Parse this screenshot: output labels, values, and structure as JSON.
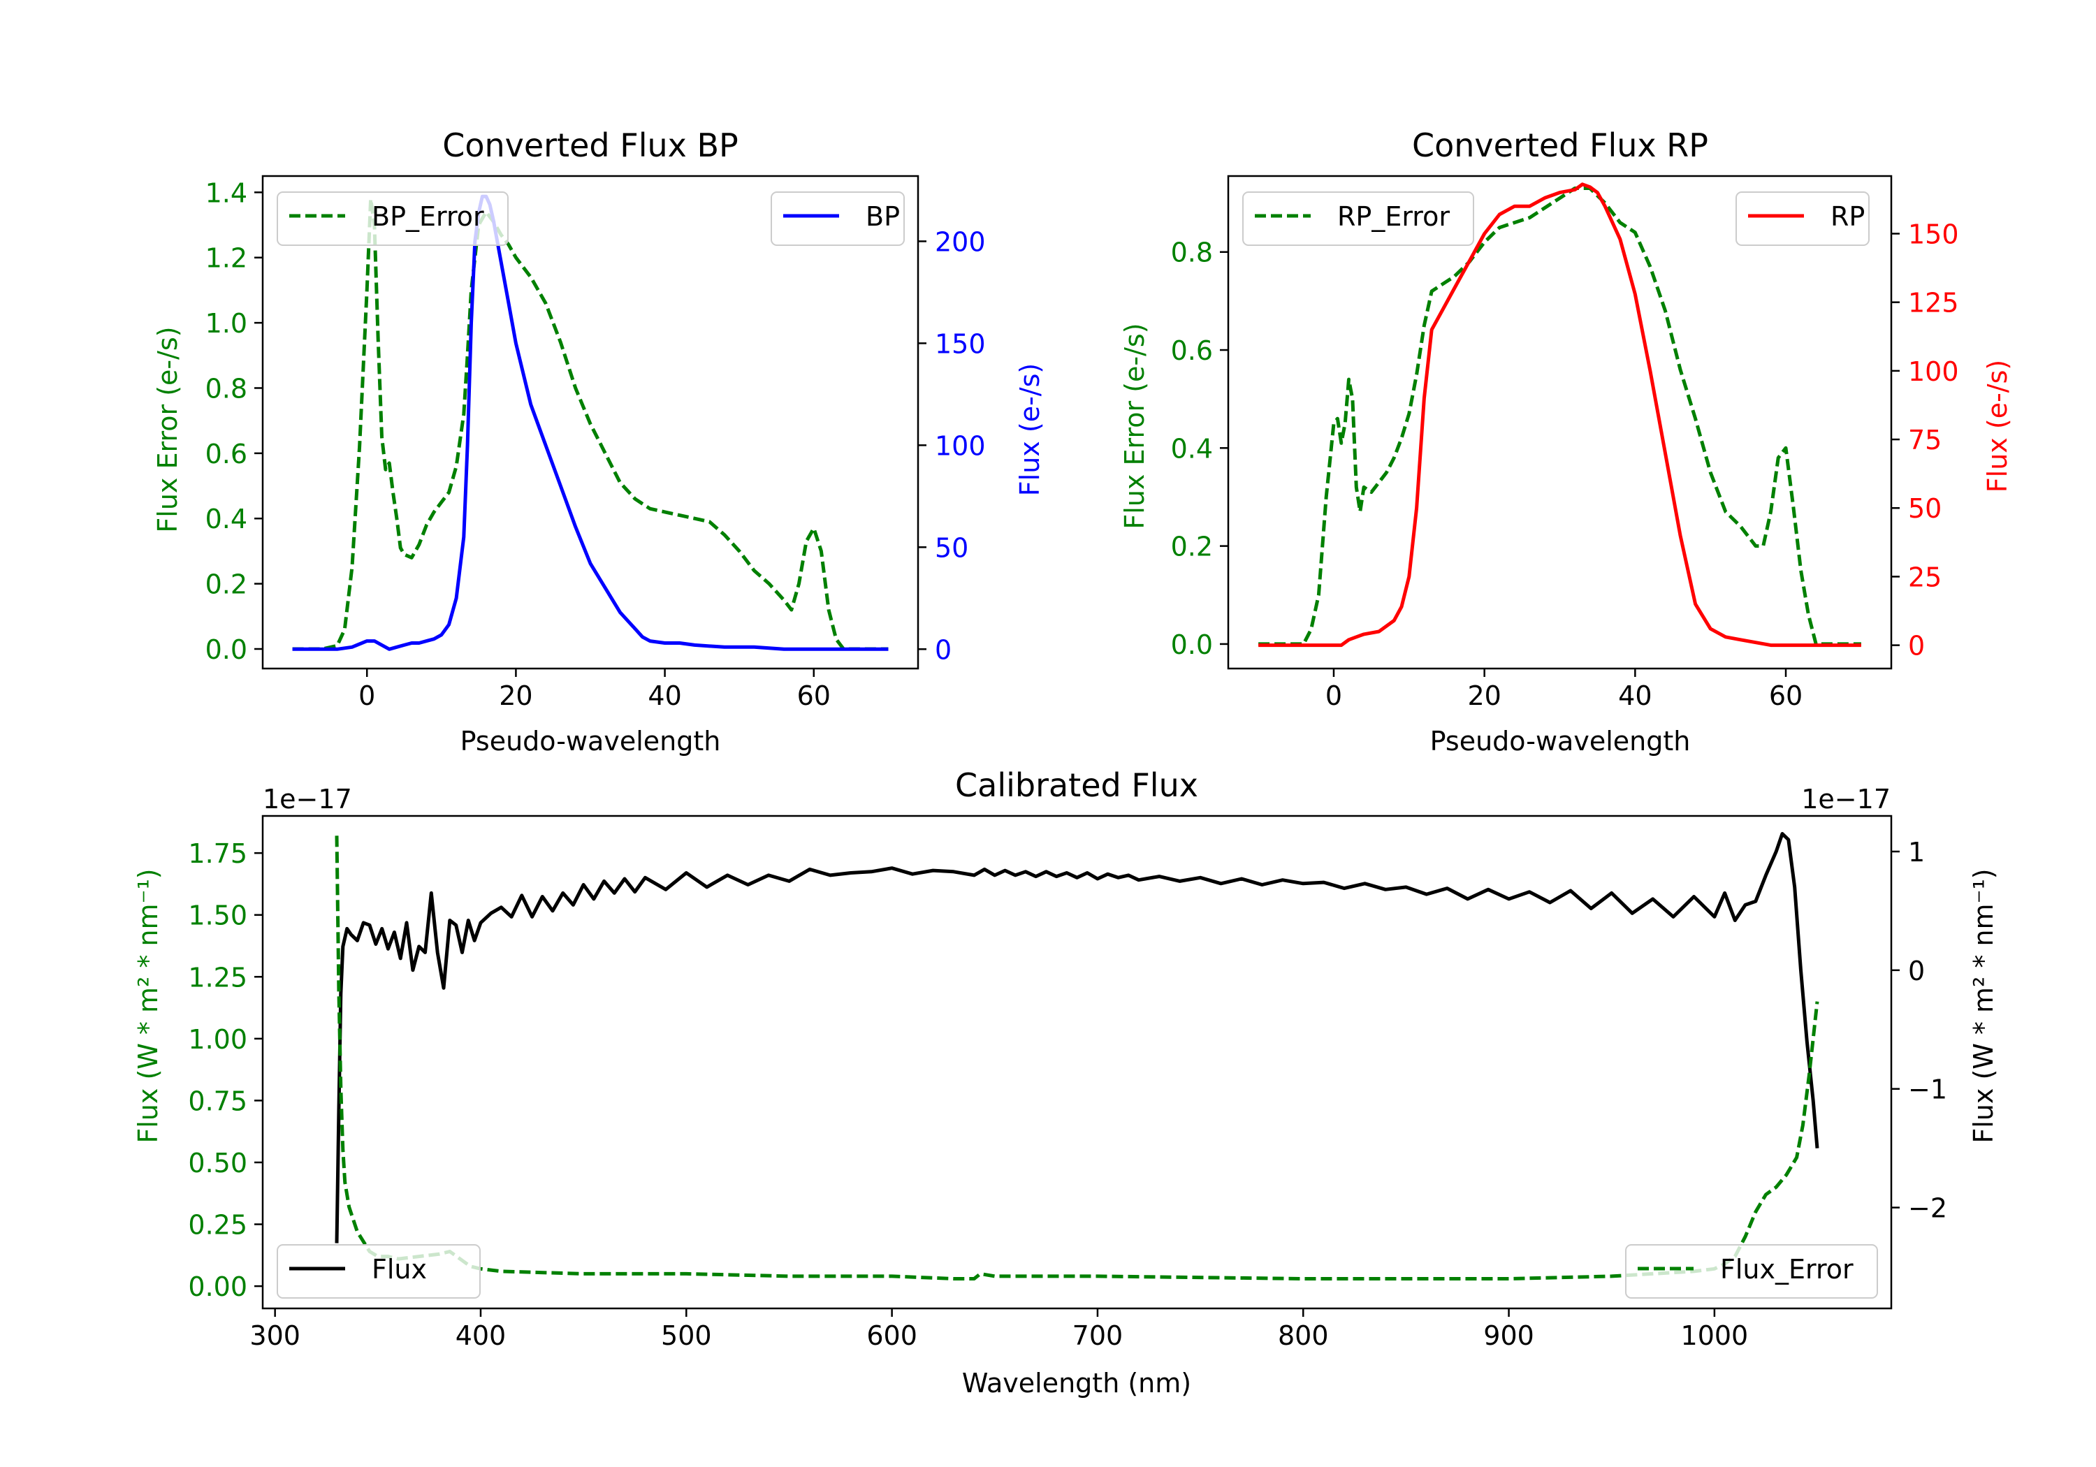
{
  "colors": {
    "green": "#008000",
    "blue": "#0000ff",
    "red": "#ff0000",
    "black": "#000000",
    "axis": "#000000"
  },
  "chart_data": [
    {
      "id": "bp",
      "type": "line",
      "title": "Converted Flux BP",
      "xlabel": "Pseudo-wavelength",
      "ylabel_left": "Flux Error (e-/s)",
      "ylabel_right": "Flux (e-/s)",
      "xlim": [
        -14,
        74
      ],
      "ylim_left": [
        -0.06,
        1.45
      ],
      "ylim_right": [
        -9.5,
        232
      ],
      "xticks": [
        0,
        20,
        40,
        60
      ],
      "xtick_labels": [
        "0",
        "20",
        "40",
        "60"
      ],
      "yticks_left": [
        0.0,
        0.2,
        0.4,
        0.6,
        0.8,
        1.0,
        1.2,
        1.4
      ],
      "yticks_left_labels": [
        "0.0",
        "0.2",
        "0.4",
        "0.6",
        "0.8",
        "1.0",
        "1.2",
        "1.4"
      ],
      "yticks_right": [
        0,
        50,
        100,
        150,
        200
      ],
      "yticks_right_labels": [
        "0",
        "50",
        "100",
        "150",
        "200"
      ],
      "legend_left": {
        "label": "BP_Error",
        "position": "upper left"
      },
      "legend_right": {
        "label": "BP",
        "position": "upper right"
      },
      "series": [
        {
          "name": "BP_Error",
          "axis": "left",
          "style": "dashed",
          "color": "#008000",
          "x": [
            -10,
            -6,
            -4,
            -3,
            -2,
            -1,
            0,
            0.5,
            1,
            1.5,
            2,
            2.5,
            3,
            3.5,
            4,
            4.5,
            5,
            6,
            7,
            8,
            9,
            10,
            11,
            12,
            13,
            13.5,
            14,
            15,
            16,
            17,
            18,
            19,
            20,
            22,
            24,
            26,
            28,
            30,
            32,
            34,
            36,
            38,
            40,
            42,
            44,
            46,
            48,
            50,
            52,
            54,
            56,
            57,
            58,
            59,
            60,
            61,
            62,
            63,
            64,
            66,
            68,
            70
          ],
          "y": [
            0.0,
            0.0,
            0.01,
            0.06,
            0.25,
            0.62,
            1.1,
            1.38,
            1.3,
            0.95,
            0.65,
            0.55,
            0.57,
            0.48,
            0.4,
            0.31,
            0.29,
            0.28,
            0.32,
            0.38,
            0.42,
            0.45,
            0.48,
            0.56,
            0.72,
            0.9,
            1.1,
            1.3,
            1.34,
            1.31,
            1.27,
            1.24,
            1.2,
            1.14,
            1.06,
            0.94,
            0.8,
            0.69,
            0.6,
            0.51,
            0.46,
            0.43,
            0.42,
            0.41,
            0.4,
            0.39,
            0.35,
            0.3,
            0.24,
            0.2,
            0.15,
            0.12,
            0.2,
            0.33,
            0.37,
            0.3,
            0.12,
            0.03,
            0.0,
            0.0,
            0.0,
            0.0
          ]
        },
        {
          "name": "BP",
          "axis": "right",
          "style": "solid",
          "color": "#0000ff",
          "x": [
            -10,
            -4,
            -2,
            0,
            1,
            2,
            3,
            4,
            5,
            6,
            7,
            8,
            9,
            10,
            11,
            12,
            13,
            13.5,
            14,
            14.5,
            15,
            15.5,
            16,
            16.5,
            17,
            18,
            19,
            20,
            22,
            24,
            26,
            28,
            30,
            32,
            34,
            36,
            37,
            38,
            40,
            42,
            44,
            48,
            52,
            56,
            60,
            64,
            70
          ],
          "y": [
            0,
            0,
            1,
            4,
            4,
            2,
            0,
            1,
            2,
            3,
            3,
            4,
            5,
            7,
            12,
            25,
            55,
            100,
            160,
            200,
            214,
            222,
            222,
            218,
            210,
            190,
            170,
            150,
            120,
            100,
            80,
            60,
            42,
            30,
            18,
            10,
            6,
            4,
            3,
            3,
            2,
            1,
            1,
            0,
            0,
            0,
            0
          ]
        }
      ]
    },
    {
      "id": "rp",
      "type": "line",
      "title": "Converted Flux RP",
      "xlabel": "Pseudo-wavelength",
      "ylabel_left": "Flux Error (e-/s)",
      "ylabel_right": "Flux (e-/s)",
      "xlim": [
        -14,
        74
      ],
      "ylim_left": [
        -0.05,
        0.955
      ],
      "ylim_right": [
        -8.5,
        171
      ],
      "xticks": [
        0,
        20,
        40,
        60
      ],
      "xtick_labels": [
        "0",
        "20",
        "40",
        "60"
      ],
      "yticks_left": [
        0.0,
        0.2,
        0.4,
        0.6,
        0.8
      ],
      "yticks_left_labels": [
        "0.0",
        "0.2",
        "0.4",
        "0.6",
        "0.8"
      ],
      "yticks_right": [
        0,
        25,
        50,
        75,
        100,
        125,
        150
      ],
      "yticks_right_labels": [
        "0",
        "25",
        "50",
        "75",
        "100",
        "125",
        "150"
      ],
      "legend_left": {
        "label": "RP_Error",
        "position": "upper left"
      },
      "legend_right": {
        "label": "RP",
        "position": "upper right"
      },
      "series": [
        {
          "name": "RP_Error",
          "axis": "left",
          "style": "dashed",
          "color": "#008000",
          "x": [
            -10,
            -4,
            -3,
            -2,
            -1,
            0,
            0.5,
            1,
            1.5,
            2,
            2.5,
            3,
            3.5,
            4,
            5,
            6,
            7,
            8,
            9,
            10,
            11,
            12,
            13,
            14,
            16,
            18,
            20,
            22,
            24,
            26,
            28,
            30,
            32,
            34,
            36,
            38,
            40,
            42,
            44,
            46,
            48,
            50,
            52,
            54,
            55,
            56,
            57,
            58,
            59,
            60,
            61,
            62,
            63,
            64,
            66,
            70
          ],
          "y": [
            0.0,
            0.0,
            0.03,
            0.1,
            0.3,
            0.45,
            0.46,
            0.41,
            0.45,
            0.54,
            0.5,
            0.32,
            0.27,
            0.32,
            0.31,
            0.33,
            0.35,
            0.38,
            0.42,
            0.47,
            0.55,
            0.65,
            0.72,
            0.73,
            0.75,
            0.78,
            0.82,
            0.85,
            0.86,
            0.87,
            0.89,
            0.91,
            0.93,
            0.93,
            0.9,
            0.86,
            0.84,
            0.77,
            0.68,
            0.56,
            0.46,
            0.35,
            0.27,
            0.24,
            0.22,
            0.2,
            0.2,
            0.27,
            0.38,
            0.4,
            0.28,
            0.15,
            0.06,
            0.0,
            0.0,
            0.0
          ]
        },
        {
          "name": "RP",
          "axis": "right",
          "style": "solid",
          "color": "#ff0000",
          "x": [
            -10,
            -4,
            -2,
            0,
            1,
            2,
            3,
            4,
            6,
            8,
            9,
            10,
            11,
            12,
            13,
            14,
            16,
            18,
            20,
            22,
            24,
            26,
            28,
            30,
            32,
            33,
            34,
            35,
            36,
            38,
            40,
            42,
            44,
            46,
            48,
            50,
            52,
            54,
            56,
            58,
            60,
            64,
            70
          ],
          "y": [
            0,
            0,
            0,
            0,
            0,
            2,
            3,
            4,
            5,
            9,
            14,
            25,
            50,
            90,
            115,
            120,
            130,
            140,
            150,
            157,
            160,
            160,
            163,
            165,
            166,
            168,
            167,
            165,
            160,
            148,
            128,
            100,
            70,
            40,
            15,
            6,
            3,
            2,
            1,
            0,
            0,
            0,
            0
          ]
        }
      ]
    },
    {
      "id": "cal",
      "type": "line",
      "title": "Calibrated Flux",
      "xlabel": "Wavelength (nm)",
      "ylabel_left": "Flux (W * m² * nm⁻¹)",
      "ylabel_right": "Flux (W * m² * nm⁻¹)",
      "offset_left": "1e−17",
      "offset_right": "1e−17",
      "xlim": [
        294,
        1086
      ],
      "ylim_left": [
        -0.09,
        1.9
      ],
      "ylim_right": [
        -2.85,
        1.3
      ],
      "xticks": [
        300,
        400,
        500,
        600,
        700,
        800,
        900,
        1000
      ],
      "xtick_labels": [
        "300",
        "400",
        "500",
        "600",
        "700",
        "800",
        "900",
        "1000"
      ],
      "yticks_left": [
        0.0,
        0.25,
        0.5,
        0.75,
        1.0,
        1.25,
        1.5,
        1.75
      ],
      "yticks_left_labels": [
        "0.00",
        "0.25",
        "0.50",
        "0.75",
        "1.00",
        "1.25",
        "1.50",
        "1.75"
      ],
      "yticks_right": [
        -2,
        -1,
        0,
        1
      ],
      "yticks_right_labels": [
        "−2",
        "−1",
        "0",
        "1"
      ],
      "legend_left": {
        "label": "Flux",
        "position": "lower left"
      },
      "legend_right": {
        "label": "Flux_Error",
        "position": "lower right"
      },
      "series": [
        {
          "name": "Flux",
          "axis": "right",
          "style": "solid",
          "color": "#000000",
          "x": [
            330,
            331,
            332,
            333,
            335,
            337,
            340,
            343,
            346,
            349,
            352,
            355,
            358,
            361,
            364,
            367,
            370,
            373,
            376,
            379,
            382,
            385,
            388,
            391,
            394,
            397,
            400,
            405,
            410,
            415,
            420,
            425,
            430,
            435,
            440,
            445,
            450,
            455,
            460,
            465,
            470,
            475,
            480,
            490,
            500,
            510,
            520,
            530,
            540,
            550,
            560,
            570,
            580,
            590,
            600,
            610,
            620,
            630,
            640,
            645,
            650,
            655,
            660,
            665,
            670,
            675,
            680,
            685,
            690,
            695,
            700,
            705,
            710,
            715,
            720,
            730,
            740,
            750,
            760,
            770,
            780,
            790,
            800,
            810,
            820,
            830,
            840,
            850,
            860,
            870,
            880,
            890,
            900,
            910,
            920,
            930,
            940,
            950,
            960,
            970,
            980,
            990,
            1000,
            1005,
            1010,
            1015,
            1020,
            1025,
            1030,
            1033,
            1036,
            1039,
            1042,
            1045,
            1048,
            1050
          ],
          "y": [
            -2.3,
            -1.2,
            -0.2,
            0.2,
            0.35,
            0.3,
            0.25,
            0.4,
            0.38,
            0.22,
            0.35,
            0.18,
            0.32,
            0.1,
            0.4,
            0.0,
            0.2,
            0.15,
            0.65,
            0.15,
            -0.15,
            0.42,
            0.38,
            0.15,
            0.42,
            0.25,
            0.4,
            0.48,
            0.53,
            0.45,
            0.63,
            0.45,
            0.62,
            0.5,
            0.65,
            0.55,
            0.72,
            0.6,
            0.75,
            0.65,
            0.77,
            0.66,
            0.78,
            0.68,
            0.82,
            0.7,
            0.8,
            0.72,
            0.8,
            0.75,
            0.85,
            0.8,
            0.82,
            0.83,
            0.86,
            0.81,
            0.84,
            0.83,
            0.8,
            0.85,
            0.8,
            0.84,
            0.8,
            0.83,
            0.79,
            0.83,
            0.79,
            0.82,
            0.78,
            0.82,
            0.77,
            0.81,
            0.78,
            0.8,
            0.76,
            0.79,
            0.75,
            0.78,
            0.73,
            0.77,
            0.72,
            0.76,
            0.73,
            0.74,
            0.69,
            0.73,
            0.68,
            0.7,
            0.64,
            0.69,
            0.6,
            0.68,
            0.6,
            0.66,
            0.57,
            0.67,
            0.52,
            0.65,
            0.48,
            0.6,
            0.45,
            0.62,
            0.45,
            0.65,
            0.42,
            0.55,
            0.58,
            0.8,
            1.0,
            1.15,
            1.1,
            0.7,
            0.0,
            -0.6,
            -1.1,
            -1.5
          ]
        },
        {
          "name": "Flux_Error",
          "axis": "left",
          "style": "dashed",
          "color": "#008000",
          "x": [
            330,
            331,
            332,
            333,
            334,
            336,
            338,
            340,
            343,
            346,
            350,
            355,
            360,
            370,
            380,
            385,
            390,
            395,
            400,
            410,
            450,
            500,
            550,
            600,
            630,
            640,
            643,
            650,
            700,
            800,
            900,
            950,
            970,
            990,
            1000,
            1005,
            1010,
            1015,
            1020,
            1025,
            1030,
            1035,
            1040,
            1043,
            1046,
            1048,
            1050
          ],
          "y": [
            1.82,
            1.2,
            0.8,
            0.55,
            0.42,
            0.32,
            0.27,
            0.22,
            0.18,
            0.14,
            0.12,
            0.12,
            0.11,
            0.12,
            0.13,
            0.14,
            0.11,
            0.08,
            0.07,
            0.06,
            0.05,
            0.05,
            0.04,
            0.04,
            0.03,
            0.03,
            0.05,
            0.04,
            0.04,
            0.03,
            0.03,
            0.04,
            0.05,
            0.06,
            0.07,
            0.09,
            0.12,
            0.2,
            0.3,
            0.37,
            0.4,
            0.45,
            0.52,
            0.65,
            0.85,
            1.0,
            1.15
          ]
        }
      ]
    }
  ]
}
